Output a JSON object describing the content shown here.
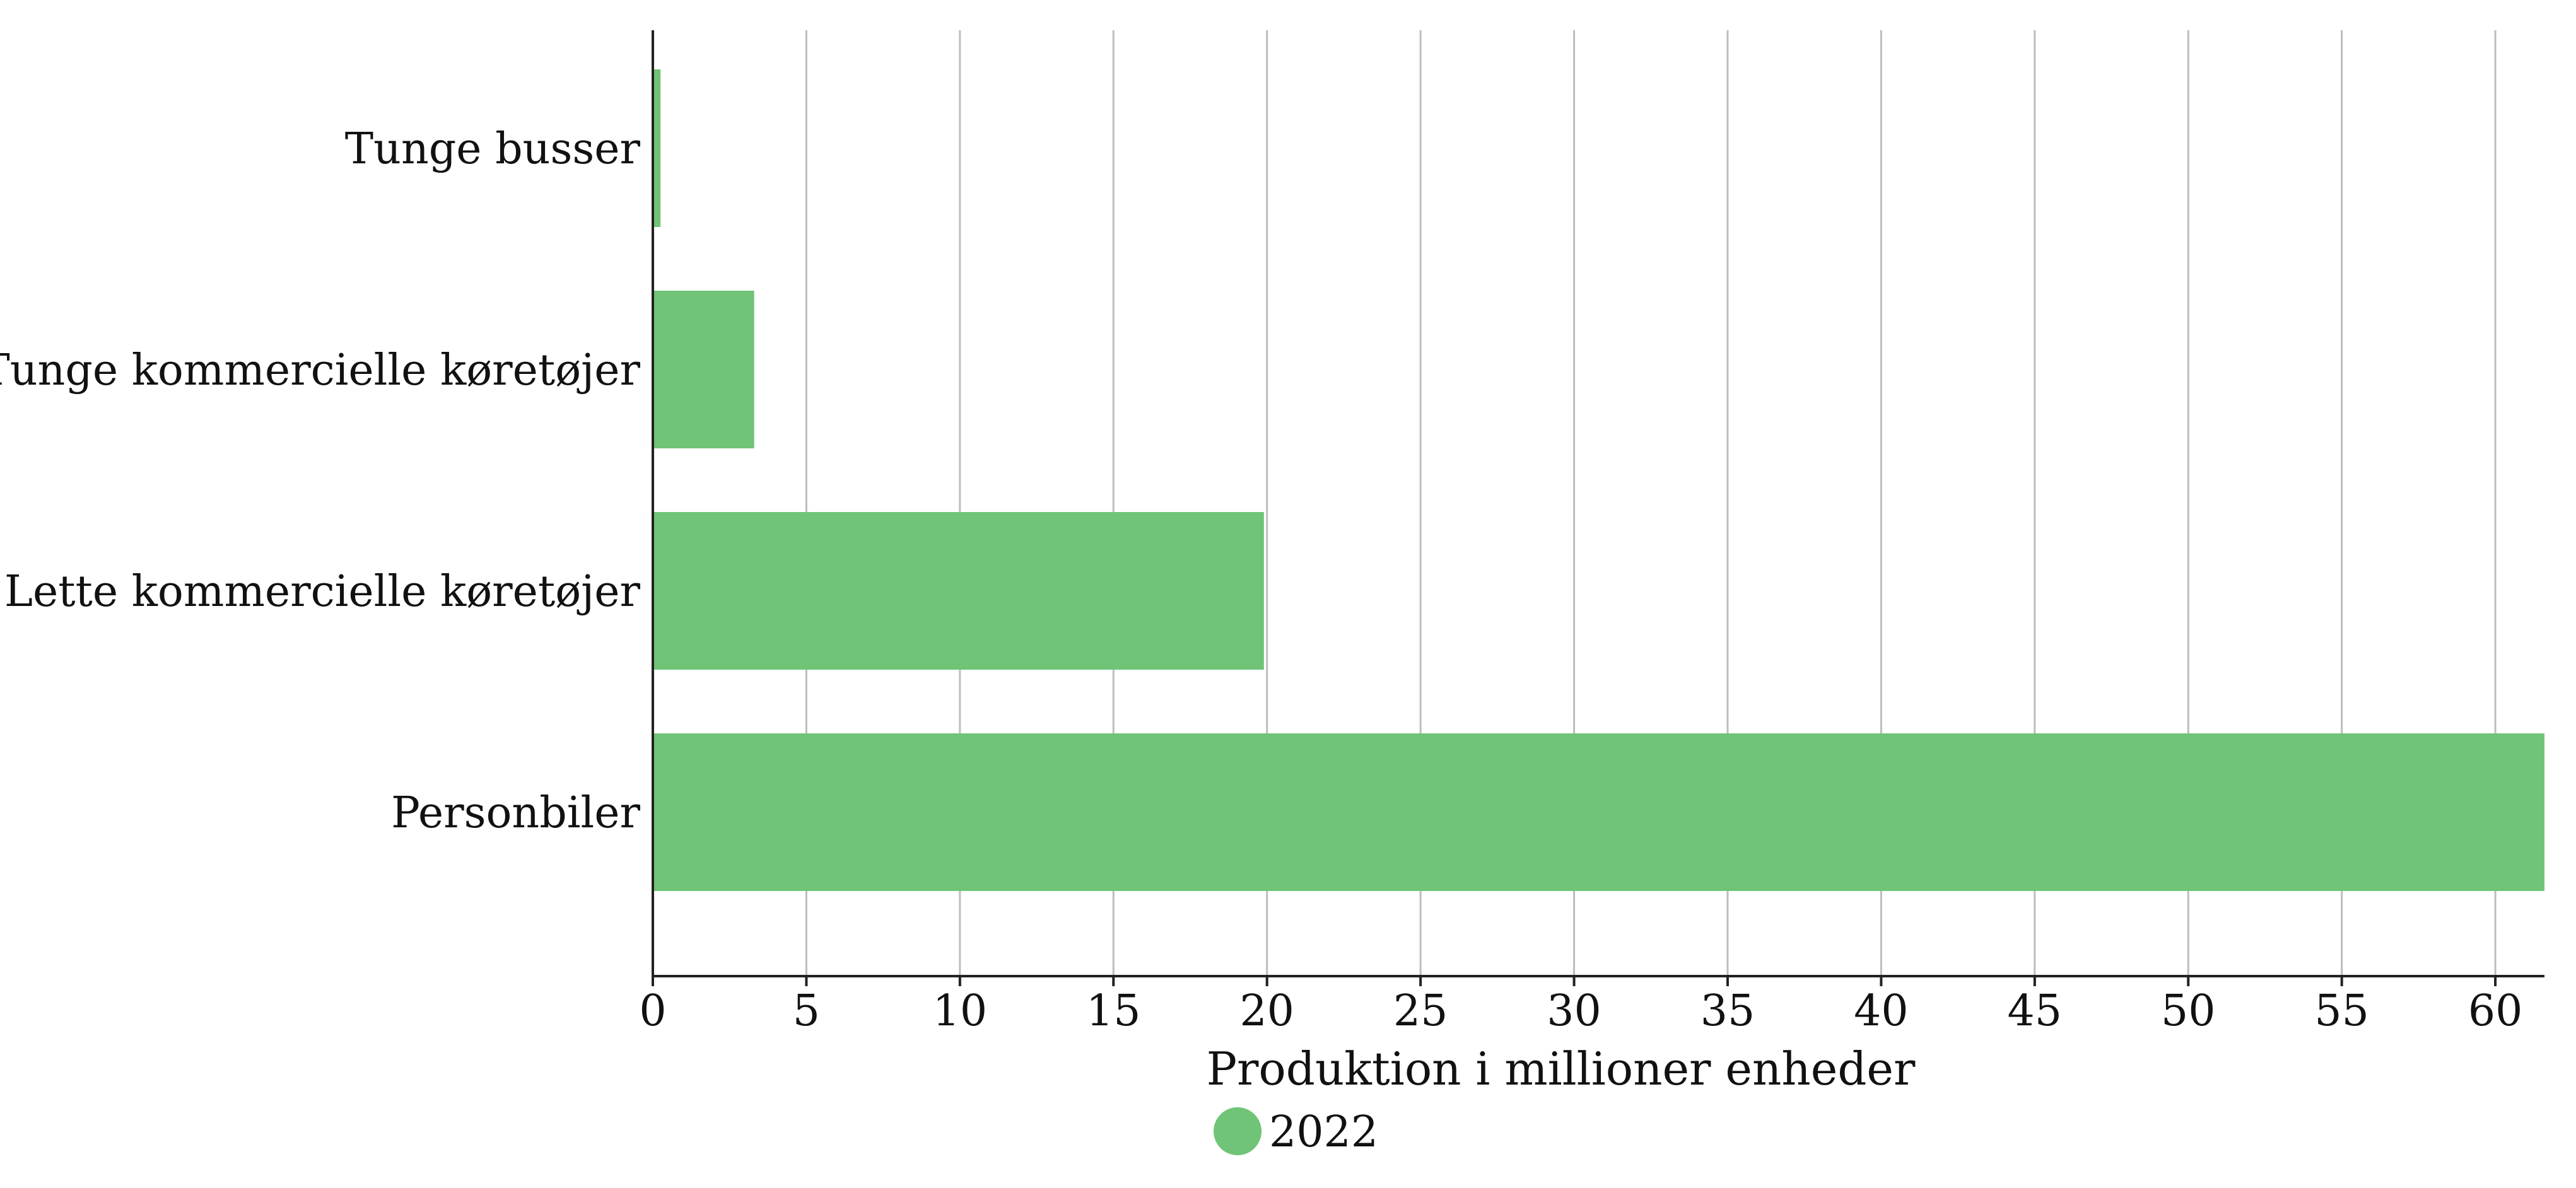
{
  "chart_data": {
    "type": "bar",
    "orientation": "horizontal",
    "categories": [
      "Personbiler",
      "Lette kommercielle køretøjer",
      "Tunge kommercielle køretøjer",
      "Tunge busser"
    ],
    "series": [
      {
        "name": "2022",
        "values": [
          61.6,
          19.9,
          3.3,
          0.25
        ],
        "color": "#70c477"
      }
    ],
    "title": "",
    "xlabel": "Produktion i millioner enheder",
    "ylabel": "",
    "xlim": [
      0,
      61.6
    ],
    "xticks": [
      "0",
      "5",
      "10",
      "15",
      "20",
      "25",
      "30",
      "35",
      "40",
      "45",
      "50",
      "55",
      "60"
    ],
    "grid": "vertical",
    "legend": {
      "position": "bottom-center",
      "marker": "circle"
    }
  }
}
